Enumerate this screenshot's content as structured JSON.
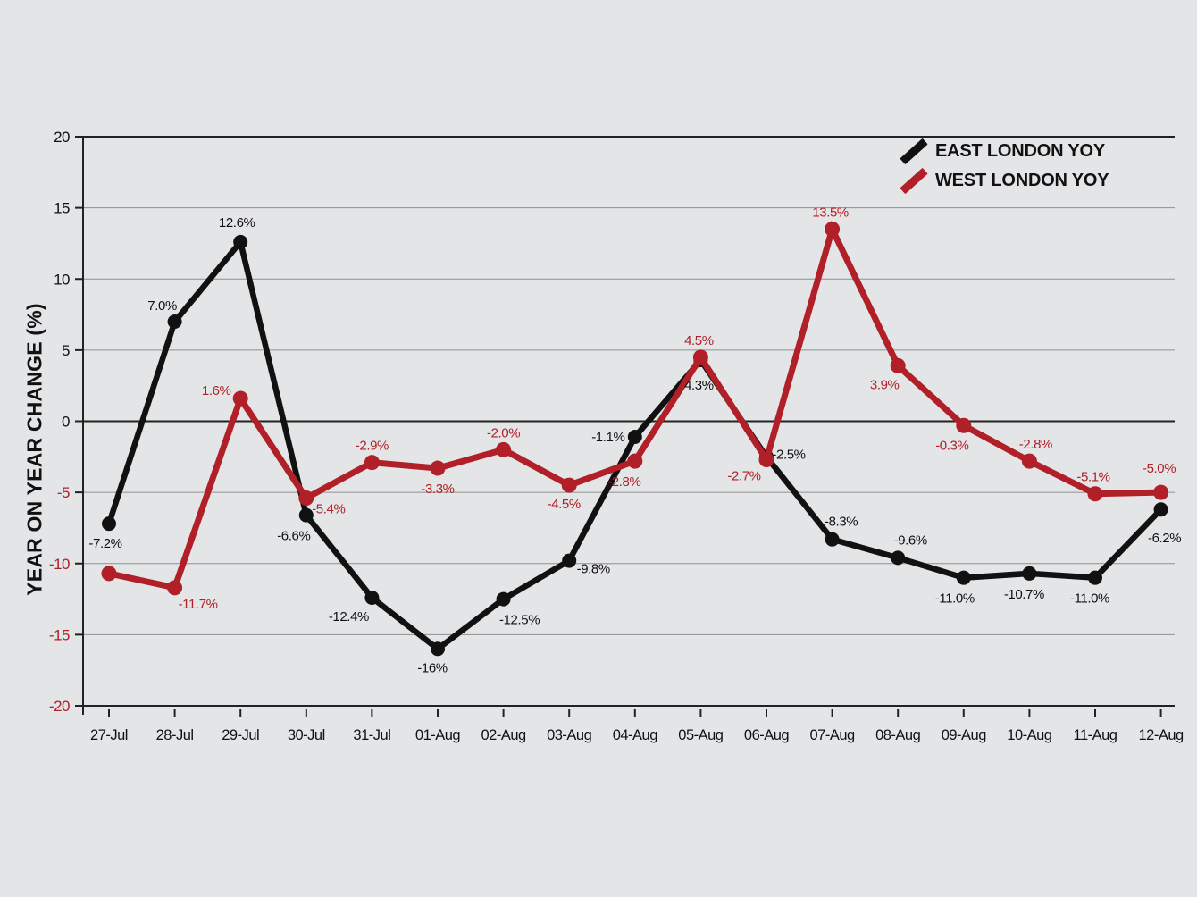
{
  "page": {
    "background": "#e4e5e7"
  },
  "y_axis": {
    "title": "YEAR ON YEAR CHANGE (%)",
    "positive_tick_color": "#111111",
    "negative_tick_color": "#b12028"
  },
  "legend": {
    "items": [
      {
        "label": "EAST LONDON YOY",
        "color": "#111111"
      },
      {
        "label": "WEST LONDON YOY",
        "color": "#b12028"
      }
    ]
  },
  "chart_data": {
    "type": "line",
    "title": "",
    "xlabel": "",
    "ylabel": "YEAR ON YEAR CHANGE (%)",
    "ylim": [
      -20,
      20
    ],
    "ytick_step": 5,
    "grid": true,
    "legend_position": "top-right",
    "categories": [
      "27-Jul",
      "28-Jul",
      "29-Jul",
      "30-Jul",
      "31-Jul",
      "01-Aug",
      "02-Aug",
      "03-Aug",
      "04-Aug",
      "05-Aug",
      "06-Aug",
      "07-Aug",
      "08-Aug",
      "09-Aug",
      "10-Aug",
      "11-Aug",
      "12-Aug"
    ],
    "series": [
      {
        "name": "EAST LONDON YOY",
        "color": "#111111",
        "values": [
          -7.2,
          7.0,
          12.6,
          -6.6,
          -12.4,
          -16,
          -12.5,
          -9.8,
          -1.1,
          4.3,
          -2.5,
          -8.3,
          -9.6,
          -11.0,
          -10.7,
          -11.0,
          -6.2
        ],
        "point_labels": [
          "-7.2%",
          "7.0%",
          "12.6%",
          "-6.6%",
          "-12.4%",
          "-16%",
          "-12.5%",
          "-9.8%",
          "-1.1%",
          "4.3%",
          "-2.5%",
          "-8.3%",
          "-9.6%",
          "-11.0%",
          "-10.7%",
          "-11.0%",
          "-6.2%"
        ],
        "label_offsets": [
          [
            -4,
            22
          ],
          [
            -14,
            -18
          ],
          [
            -4,
            -22
          ],
          [
            -14,
            23
          ],
          [
            -26,
            21
          ],
          [
            -6,
            21
          ],
          [
            18,
            23
          ],
          [
            27,
            9
          ],
          [
            -30,
            0
          ],
          [
            -2,
            28
          ],
          [
            25,
            -3
          ],
          [
            10,
            -20
          ],
          [
            14,
            -20
          ],
          [
            -10,
            23
          ],
          [
            -6,
            23
          ],
          [
            -6,
            23
          ],
          [
            4,
            32
          ]
        ]
      },
      {
        "name": "WEST LONDON YOY",
        "color": "#b12028",
        "values": [
          -10.7,
          -11.7,
          1.6,
          -5.4,
          -2.9,
          -3.3,
          -2.0,
          -4.5,
          -2.8,
          4.5,
          -2.7,
          13.5,
          3.9,
          -0.3,
          -2.8,
          -5.1,
          -5.0
        ],
        "point_labels": [
          "",
          "-11.7%",
          "1.6%",
          "-5.4%",
          "-2.9%",
          "-3.3%",
          "-2.0%",
          "-4.5%",
          "-2.8%",
          "4.5%",
          "-2.7%",
          "13.5%",
          "3.9%",
          "-0.3%",
          "-2.8%",
          "-5.1%",
          "-5.0%"
        ],
        "label_offsets": [
          [
            0,
            0
          ],
          [
            26,
            18
          ],
          [
            -27,
            -9
          ],
          [
            25,
            12
          ],
          [
            0,
            -19
          ],
          [
            0,
            23
          ],
          [
            0,
            -19
          ],
          [
            -6,
            21
          ],
          [
            -12,
            23
          ],
          [
            -2,
            -19
          ],
          [
            -25,
            18
          ],
          [
            -2,
            -19
          ],
          [
            -15,
            21
          ],
          [
            -13,
            22
          ],
          [
            7,
            -19
          ],
          [
            -2,
            -19
          ],
          [
            -2,
            -27
          ]
        ]
      }
    ]
  }
}
